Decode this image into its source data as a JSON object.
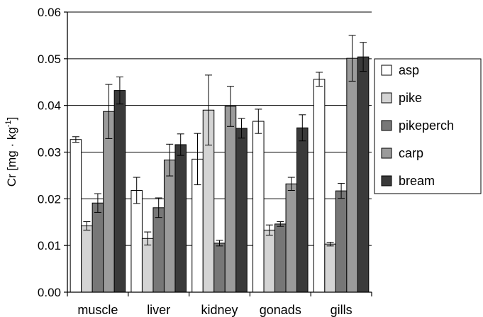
{
  "chart_data": {
    "type": "bar",
    "categories": [
      "muscle",
      "liver",
      "kidney",
      "gonads",
      "gills"
    ],
    "series": [
      {
        "name": "asp",
        "color": "#ffffff",
        "values": [
          0.0327,
          0.0218,
          0.0285,
          0.0366,
          0.0456
        ],
        "errors": [
          0.0006,
          0.0028,
          0.0055,
          0.0026,
          0.0015
        ]
      },
      {
        "name": "pike",
        "color": "#d4d4d4",
        "values": [
          0.0142,
          0.0115,
          0.039,
          0.0133,
          0.0103
        ],
        "errors": [
          0.0009,
          0.0014,
          0.0075,
          0.0011,
          0.0004
        ]
      },
      {
        "name": "pikeperch",
        "color": "#777777",
        "values": [
          0.0191,
          0.0181,
          0.0105,
          0.0146,
          0.0217
        ],
        "errors": [
          0.002,
          0.0021,
          0.0006,
          0.0005,
          0.0016
        ]
      },
      {
        "name": "carp",
        "color": "#9b9b9b",
        "values": [
          0.0387,
          0.0283,
          0.0398,
          0.0232,
          0.0501
        ],
        "errors": [
          0.0058,
          0.0034,
          0.0043,
          0.0014,
          0.0049
        ]
      },
      {
        "name": "bream",
        "color": "#3a3a3a",
        "values": [
          0.0432,
          0.0316,
          0.0351,
          0.0352,
          0.0504
        ],
        "errors": [
          0.0029,
          0.0023,
          0.0021,
          0.0028,
          0.0031
        ]
      }
    ],
    "ylabel_main": "Cr [mg · kg",
    "ylabel_sup": "-1",
    "ylabel_end": "]",
    "ylim": [
      0,
      0.06
    ],
    "yticks": [
      "0.00",
      "0.01",
      "0.02",
      "0.03",
      "0.04",
      "0.05",
      "0.06"
    ],
    "ytick_values": [
      0,
      0.01,
      0.02,
      0.03,
      0.04,
      0.05,
      0.06
    ],
    "grid": true,
    "legend_position": "right"
  }
}
